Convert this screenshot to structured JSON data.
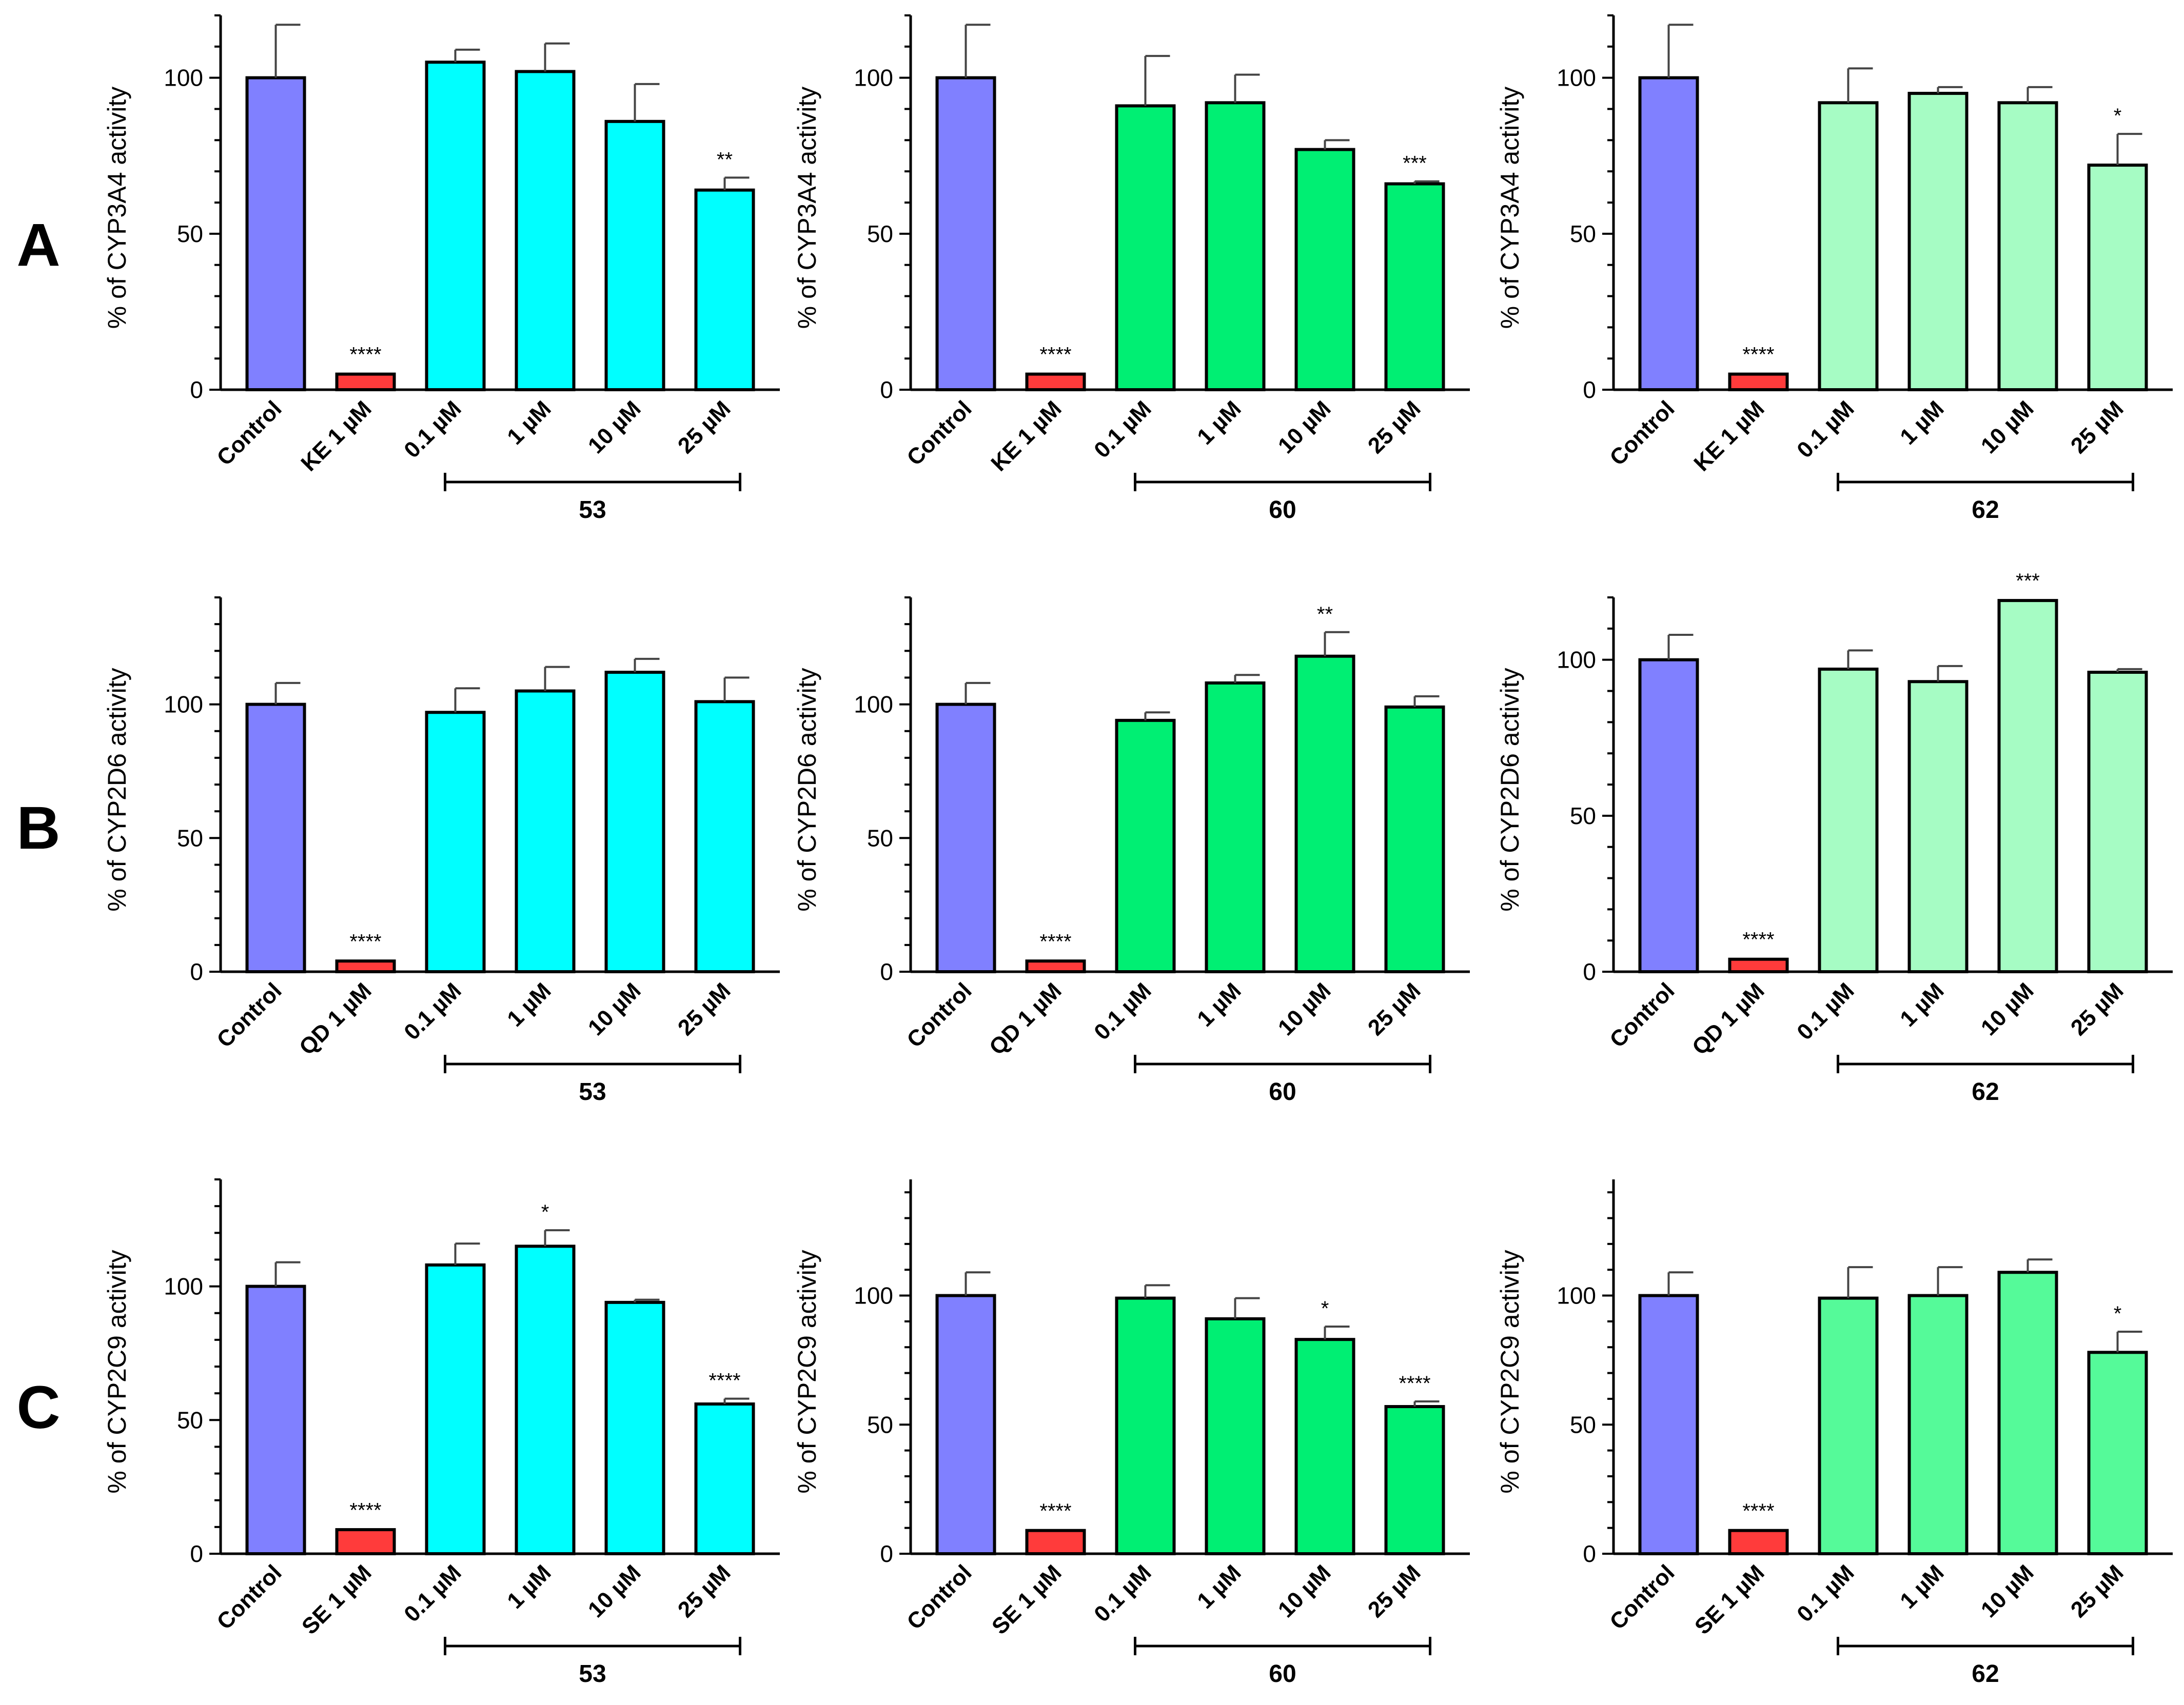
{
  "figure": {
    "row_labels": [
      "A",
      "B",
      "C"
    ]
  },
  "chart_data": [
    {
      "panel": "A-53",
      "type": "bar",
      "ylabel": "% of CYP3A4 activity",
      "ylim": [
        0,
        120
      ],
      "yticks": [
        0,
        50,
        100
      ],
      "categories": [
        "Control",
        "KE 1 µM",
        "0.1 µM",
        "1 µM",
        "10 µM",
        "25 µM"
      ],
      "values": [
        100,
        5,
        105,
        102,
        86,
        64
      ],
      "errors": [
        17,
        0.5,
        4,
        9,
        12,
        4
      ],
      "significance": [
        "",
        "****",
        "",
        "",
        "",
        "**"
      ],
      "compound_label": "53",
      "colors": [
        "#8080ff",
        "#ff3b3b",
        "#00ffff",
        "#00ffff",
        "#00ffff",
        "#00ffff"
      ]
    },
    {
      "panel": "A-60",
      "type": "bar",
      "ylabel": "% of CYP3A4 activity",
      "ylim": [
        0,
        120
      ],
      "yticks": [
        0,
        50,
        100
      ],
      "categories": [
        "Control",
        "KE 1 µM",
        "0.1 µM",
        "1 µM",
        "10 µM",
        "25 µM"
      ],
      "values": [
        100,
        5,
        91,
        92,
        77,
        66
      ],
      "errors": [
        17,
        0.5,
        16,
        9,
        3,
        0.8
      ],
      "significance": [
        "",
        "****",
        "",
        "",
        "",
        "***"
      ],
      "compound_label": "60",
      "colors": [
        "#8080ff",
        "#ff3b3b",
        "#00ef73",
        "#00ef73",
        "#00ef73",
        "#00ef73"
      ]
    },
    {
      "panel": "A-62",
      "type": "bar",
      "ylabel": "% of CYP3A4 activity",
      "ylim": [
        0,
        120
      ],
      "yticks": [
        0,
        50,
        100
      ],
      "categories": [
        "Control",
        "KE 1 µM",
        "0.1 µM",
        "1 µM",
        "10 µM",
        "25 µM"
      ],
      "values": [
        100,
        5,
        92,
        95,
        92,
        72
      ],
      "errors": [
        17,
        0.5,
        11,
        2,
        5,
        10
      ],
      "significance": [
        "",
        "****",
        "",
        "",
        "",
        "*"
      ],
      "compound_label": "62",
      "colors": [
        "#8080ff",
        "#ff3b3b",
        "#a6fcc4",
        "#a6fcc4",
        "#a6fcc4",
        "#a6fcc4"
      ]
    },
    {
      "panel": "B-53",
      "type": "bar",
      "ylabel": "% of CYP2D6 activity",
      "ylim": [
        0,
        140
      ],
      "yticks": [
        0,
        50,
        100
      ],
      "categories": [
        "Control",
        "QD 1 µM",
        "0.1 µM",
        "1 µM",
        "10 µM",
        "25 µM"
      ],
      "values": [
        100,
        4,
        97,
        105,
        112,
        101
      ],
      "errors": [
        8,
        0.5,
        9,
        9,
        5,
        9
      ],
      "significance": [
        "",
        "****",
        "",
        "",
        "",
        ""
      ],
      "compound_label": "53",
      "colors": [
        "#8080ff",
        "#ff3b3b",
        "#00ffff",
        "#00ffff",
        "#00ffff",
        "#00ffff"
      ]
    },
    {
      "panel": "B-60",
      "type": "bar",
      "ylabel": "% of CYP2D6 activity",
      "ylim": [
        0,
        140
      ],
      "yticks": [
        0,
        50,
        100
      ],
      "categories": [
        "Control",
        "QD 1 µM",
        "0.1 µM",
        "1 µM",
        "10 µM",
        "25 µM"
      ],
      "values": [
        100,
        4,
        94,
        108,
        118,
        99
      ],
      "errors": [
        8,
        0.5,
        3,
        3,
        9,
        4
      ],
      "significance": [
        "",
        "****",
        "",
        "",
        "**",
        ""
      ],
      "compound_label": "60",
      "colors": [
        "#8080ff",
        "#ff3b3b",
        "#00ef73",
        "#00ef73",
        "#00ef73",
        "#00ef73"
      ]
    },
    {
      "panel": "B-62",
      "type": "bar",
      "ylabel": "% of CYP2D6 activity",
      "ylim": [
        0,
        120
      ],
      "yticks": [
        0,
        50,
        100
      ],
      "categories": [
        "Control",
        "QD 1 µM",
        "0.1 µM",
        "1 µM",
        "10 µM",
        "25 µM"
      ],
      "values": [
        100,
        4,
        97,
        93,
        119,
        96
      ],
      "errors": [
        8,
        0.5,
        6,
        5,
        0.5,
        1
      ],
      "significance": [
        "",
        "****",
        "",
        "",
        "***",
        ""
      ],
      "compound_label": "62",
      "colors": [
        "#8080ff",
        "#ff3b3b",
        "#a6fcc4",
        "#a6fcc4",
        "#a6fcc4",
        "#a6fcc4"
      ]
    },
    {
      "panel": "C-53",
      "type": "bar",
      "ylabel": "% of CYP2C9 activity",
      "ylim": [
        0,
        140
      ],
      "yticks": [
        0,
        50,
        100
      ],
      "categories": [
        "Control",
        "SE 1 µM",
        "0.1 µM",
        "1 µM",
        "10 µM",
        "25 µM"
      ],
      "values": [
        100,
        9,
        108,
        115,
        94,
        56
      ],
      "errors": [
        9,
        0.5,
        8,
        6,
        1,
        2
      ],
      "significance": [
        "",
        "****",
        "",
        "*",
        "",
        "****"
      ],
      "compound_label": "53",
      "colors": [
        "#8080ff",
        "#ff3b3b",
        "#00ffff",
        "#00ffff",
        "#00ffff",
        "#00ffff"
      ]
    },
    {
      "panel": "C-60",
      "type": "bar",
      "ylabel": "% of CYP2C9 activity",
      "ylim": [
        0,
        145
      ],
      "yticks": [
        0,
        50,
        100
      ],
      "categories": [
        "Control",
        "SE 1 µM",
        "0.1 µM",
        "1 µM",
        "10 µM",
        "25 µM"
      ],
      "values": [
        100,
        9,
        99,
        91,
        83,
        57
      ],
      "errors": [
        9,
        0.5,
        5,
        8,
        5,
        2
      ],
      "significance": [
        "",
        "****",
        "",
        "",
        "*",
        "****"
      ],
      "compound_label": "60",
      "colors": [
        "#8080ff",
        "#ff3b3b",
        "#00ef73",
        "#00ef73",
        "#00ef73",
        "#00ef73"
      ]
    },
    {
      "panel": "C-62",
      "type": "bar",
      "ylabel": "% of CYP2C9 activity",
      "ylim": [
        0,
        145
      ],
      "yticks": [
        0,
        50,
        100
      ],
      "categories": [
        "Control",
        "SE 1 µM",
        "0.1 µM",
        "1 µM",
        "10 µM",
        "25 µM"
      ],
      "values": [
        100,
        9,
        99,
        100,
        109,
        78
      ],
      "errors": [
        9,
        0.5,
        12,
        11,
        5,
        8
      ],
      "significance": [
        "",
        "****",
        "",
        "",
        "",
        "*"
      ],
      "compound_label": "62",
      "colors": [
        "#8080ff",
        "#ff3b3b",
        "#55fa99",
        "#55fa99",
        "#55fa99",
        "#55fa99"
      ]
    }
  ]
}
